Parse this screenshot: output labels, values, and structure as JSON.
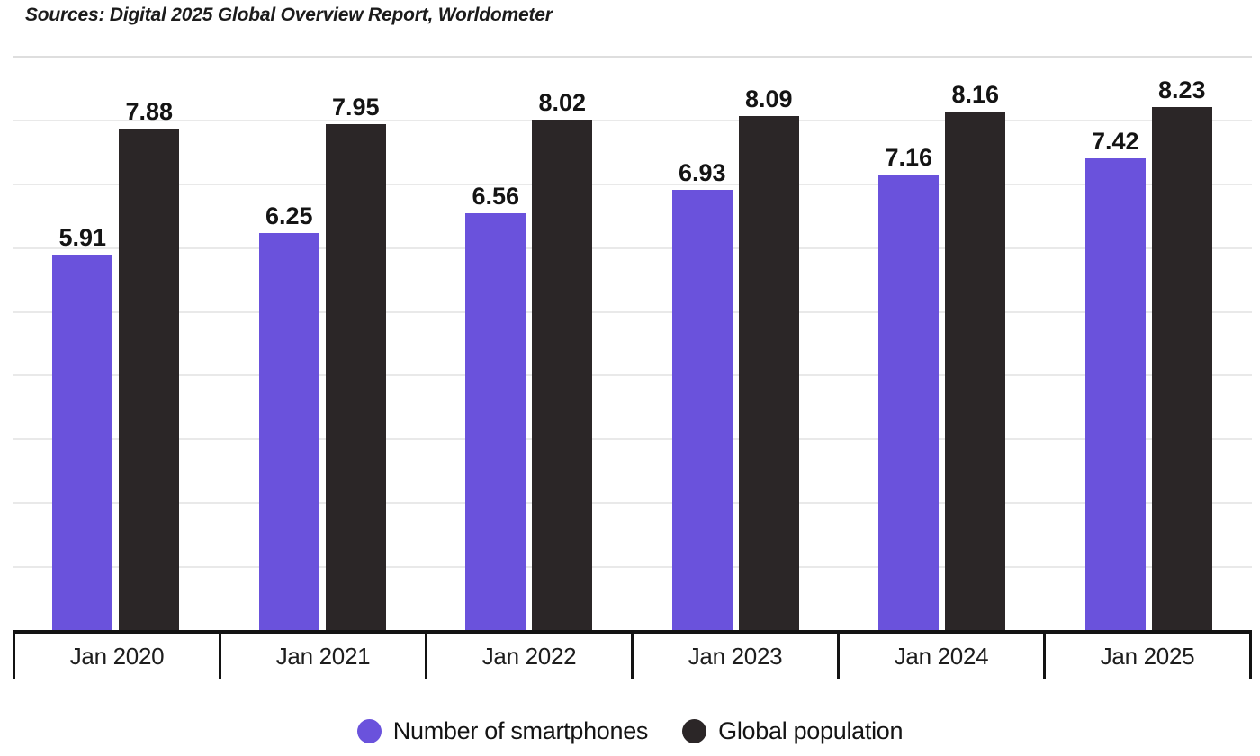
{
  "sources": "Sources: Digital 2025 Global Overview Report, Worldometer",
  "colors": {
    "smartphones": "#6A52DC",
    "population": "#2B2627",
    "grid": "#E9E9E9",
    "axis": "#131313",
    "text": "#141414"
  },
  "chart_data": {
    "type": "bar",
    "title": "",
    "xlabel": "",
    "ylabel": "",
    "categories": [
      "Jan 2020",
      "Jan 2021",
      "Jan 2022",
      "Jan 2023",
      "Jan 2024",
      "Jan 2025"
    ],
    "series": [
      {
        "name": "Number of smartphones",
        "color": "#6A52DC",
        "values": [
          5.91,
          6.25,
          6.56,
          6.93,
          7.16,
          7.42
        ]
      },
      {
        "name": "Global population",
        "color": "#2B2627",
        "values": [
          7.88,
          7.95,
          8.02,
          8.09,
          8.16,
          8.23
        ]
      }
    ],
    "value_labels": [
      "5.91",
      "6.25",
      "6.56",
      "6.93",
      "7.16",
      "7.42",
      "7.88",
      "7.95",
      "8.02",
      "8.09",
      "8.16",
      "8.23"
    ],
    "ylim": [
      0,
      9
    ],
    "grid": true,
    "grid_interval": 1,
    "legend_position": "bottom"
  },
  "legend": {
    "items": [
      {
        "label": "Number of smartphones",
        "color": "#6A52DC"
      },
      {
        "label": "Global population",
        "color": "#2B2627"
      }
    ]
  }
}
